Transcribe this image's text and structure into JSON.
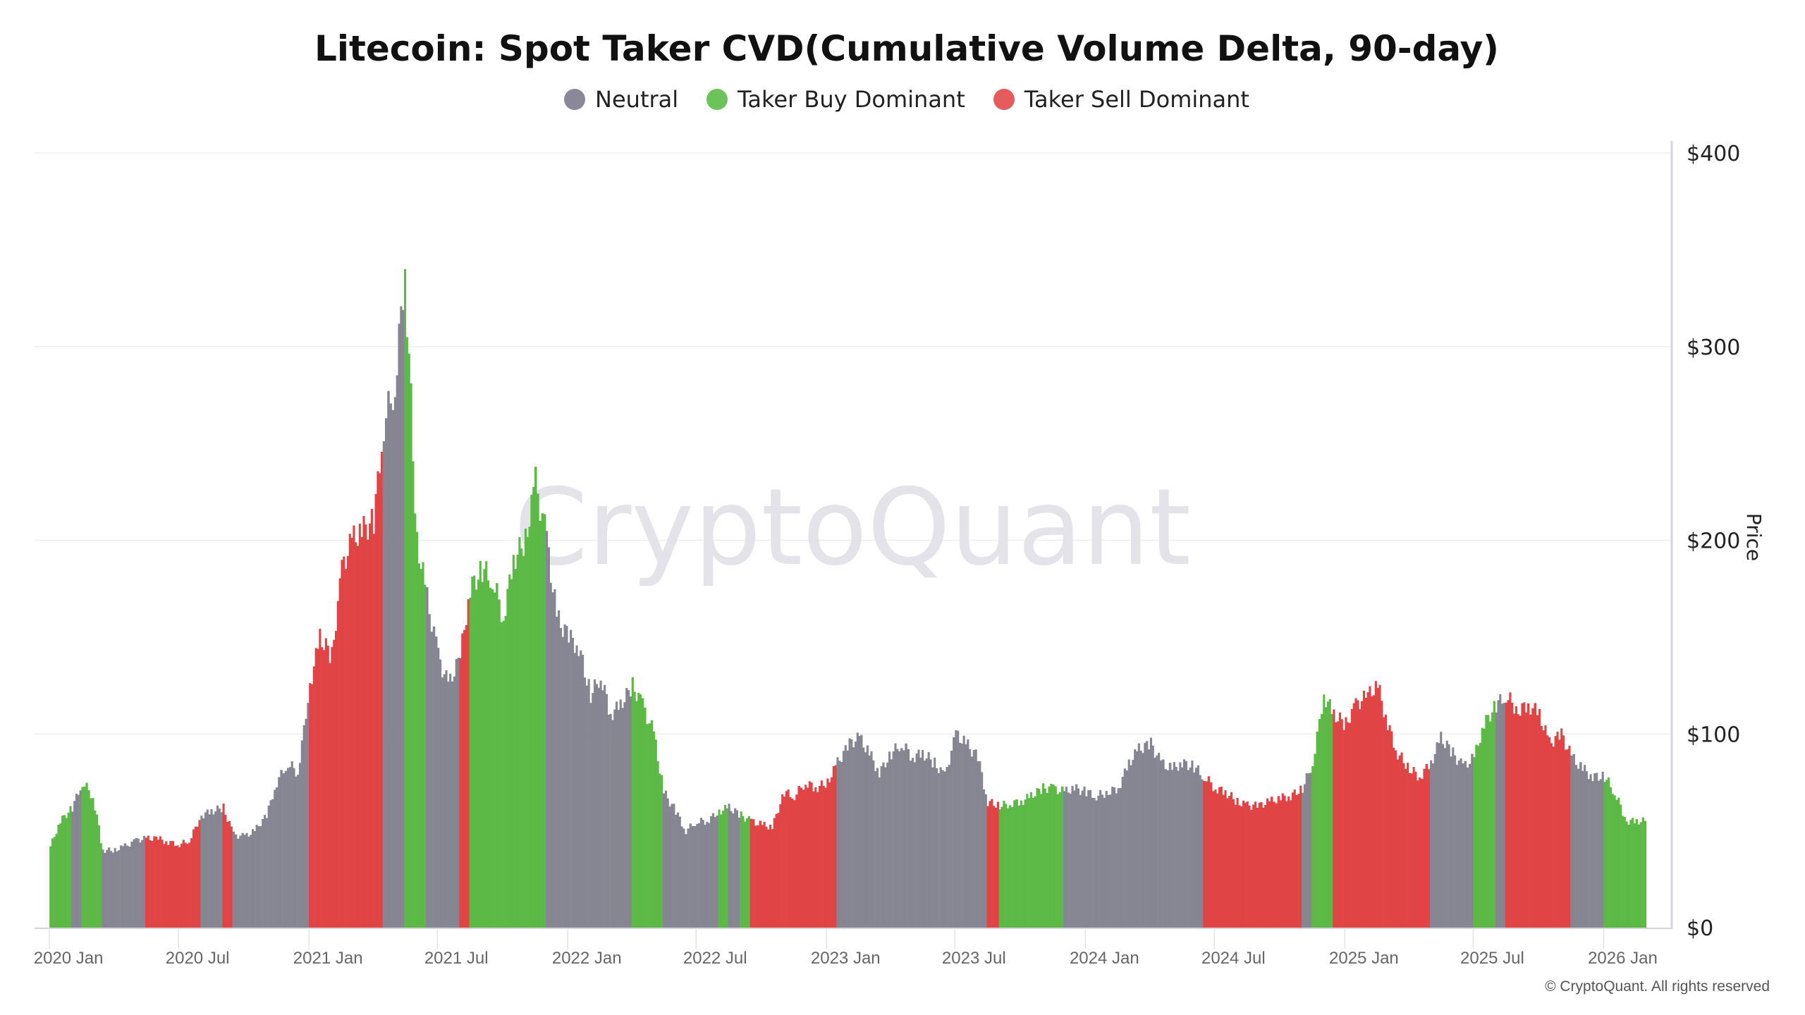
{
  "chart_data": {
    "type": "bar",
    "title": "Litecoin: Spot Taker CVD(Cumulative Volume Delta, 90-day)",
    "ylabel": "Price",
    "xlabel": "",
    "ylim": [
      0,
      400
    ],
    "xlim": [
      "2019-12-11",
      "2026-04-07"
    ],
    "y_ticks": [
      "$0",
      "$100",
      "$200",
      "$300",
      "$400"
    ],
    "y_tick_values": [
      0,
      100,
      200,
      300,
      400
    ],
    "y_axis_position": "right",
    "x_ticks": [
      {
        "date": "2020-01-01",
        "label": "2020 Jan"
      },
      {
        "date": "2020-07-01",
        "label": "2020 Jul"
      },
      {
        "date": "2021-01-01",
        "label": "2021 Jan"
      },
      {
        "date": "2021-07-01",
        "label": "2021 Jul"
      },
      {
        "date": "2022-01-01",
        "label": "2022 Jan"
      },
      {
        "date": "2022-07-01",
        "label": "2022 Jul"
      },
      {
        "date": "2023-01-01",
        "label": "2023 Jan"
      },
      {
        "date": "2023-07-01",
        "label": "2023 Jul"
      },
      {
        "date": "2024-01-01",
        "label": "2024 Jan"
      },
      {
        "date": "2024-07-01",
        "label": "2024 Jul"
      },
      {
        "date": "2025-01-01",
        "label": "2025 Jan"
      },
      {
        "date": "2025-07-01",
        "label": "2025 Jul"
      },
      {
        "date": "2026-01-01",
        "label": "2026 Jan"
      }
    ],
    "grid": true,
    "legend_position": "top-center",
    "legend": [
      {
        "key": "N",
        "name": "Neutral",
        "color": "#8a8898"
      },
      {
        "key": "B",
        "name": "Taker Buy Dominant",
        "color": "#6cc35a"
      },
      {
        "key": "S",
        "name": "Taker Sell Dominant",
        "color": "#e65c5c"
      }
    ],
    "bar_colors": {
      "N": "#868592",
      "B": "#5cb946",
      "S": "#e04444"
    },
    "points": [
      [
        "2020-01-01",
        42,
        "B"
      ],
      [
        "2020-01-15",
        55,
        "B"
      ],
      [
        "2020-02-01",
        62,
        "N"
      ],
      [
        "2020-02-15",
        75,
        "B"
      ],
      [
        "2020-03-01",
        68,
        "B"
      ],
      [
        "2020-03-15",
        40,
        "N"
      ],
      [
        "2020-04-01",
        40,
        "N"
      ],
      [
        "2020-04-15",
        42,
        "N"
      ],
      [
        "2020-05-01",
        45,
        "N"
      ],
      [
        "2020-05-15",
        46,
        "S"
      ],
      [
        "2020-06-01",
        46,
        "S"
      ],
      [
        "2020-06-15",
        44,
        "S"
      ],
      [
        "2020-07-01",
        43,
        "S"
      ],
      [
        "2020-07-15",
        45,
        "S"
      ],
      [
        "2020-08-01",
        58,
        "N"
      ],
      [
        "2020-08-15",
        60,
        "N"
      ],
      [
        "2020-09-01",
        62,
        "S"
      ],
      [
        "2020-09-15",
        48,
        "N"
      ],
      [
        "2020-10-01",
        47,
        "N"
      ],
      [
        "2020-10-15",
        50,
        "N"
      ],
      [
        "2020-11-01",
        58,
        "N"
      ],
      [
        "2020-11-15",
        75,
        "N"
      ],
      [
        "2020-12-01",
        85,
        "N"
      ],
      [
        "2020-12-15",
        80,
        "N"
      ],
      [
        "2021-01-01",
        125,
        "S"
      ],
      [
        "2021-01-15",
        150,
        "S"
      ],
      [
        "2021-02-01",
        140,
        "S"
      ],
      [
        "2021-02-15",
        185,
        "S"
      ],
      [
        "2021-03-01",
        200,
        "S"
      ],
      [
        "2021-03-15",
        205,
        "S"
      ],
      [
        "2021-04-01",
        210,
        "S"
      ],
      [
        "2021-04-15",
        260,
        "N"
      ],
      [
        "2021-05-01",
        280,
        "N"
      ],
      [
        "2021-05-15",
        340,
        "B"
      ],
      [
        "2021-06-01",
        200,
        "B"
      ],
      [
        "2021-06-15",
        170,
        "N"
      ],
      [
        "2021-07-01",
        140,
        "N"
      ],
      [
        "2021-07-15",
        125,
        "N"
      ],
      [
        "2021-08-01",
        140,
        "S"
      ],
      [
        "2021-08-15",
        175,
        "B"
      ],
      [
        "2021-09-01",
        185,
        "B"
      ],
      [
        "2021-09-15",
        180,
        "B"
      ],
      [
        "2021-10-01",
        160,
        "B"
      ],
      [
        "2021-10-15",
        190,
        "B"
      ],
      [
        "2021-11-01",
        200,
        "B"
      ],
      [
        "2021-11-15",
        230,
        "B"
      ],
      [
        "2021-12-01",
        200,
        "N"
      ],
      [
        "2021-12-15",
        160,
        "N"
      ],
      [
        "2022-01-01",
        150,
        "N"
      ],
      [
        "2022-01-15",
        145,
        "N"
      ],
      [
        "2022-02-01",
        120,
        "N"
      ],
      [
        "2022-02-15",
        130,
        "N"
      ],
      [
        "2022-03-01",
        110,
        "N"
      ],
      [
        "2022-03-15",
        115,
        "N"
      ],
      [
        "2022-04-01",
        125,
        "B"
      ],
      [
        "2022-04-15",
        115,
        "B"
      ],
      [
        "2022-05-01",
        100,
        "B"
      ],
      [
        "2022-05-15",
        70,
        "N"
      ],
      [
        "2022-06-01",
        60,
        "N"
      ],
      [
        "2022-06-15",
        50,
        "N"
      ],
      [
        "2022-07-01",
        55,
        "N"
      ],
      [
        "2022-07-15",
        55,
        "N"
      ],
      [
        "2022-08-01",
        60,
        "B"
      ],
      [
        "2022-08-15",
        62,
        "N"
      ],
      [
        "2022-09-01",
        58,
        "B"
      ],
      [
        "2022-09-15",
        55,
        "S"
      ],
      [
        "2022-10-01",
        53,
        "S"
      ],
      [
        "2022-10-15",
        52,
        "S"
      ],
      [
        "2022-11-01",
        70,
        "S"
      ],
      [
        "2022-11-15",
        68,
        "S"
      ],
      [
        "2022-12-01",
        75,
        "S"
      ],
      [
        "2022-12-15",
        72,
        "S"
      ],
      [
        "2023-01-01",
        75,
        "S"
      ],
      [
        "2023-01-15",
        85,
        "N"
      ],
      [
        "2023-02-01",
        95,
        "N"
      ],
      [
        "2023-02-15",
        98,
        "N"
      ],
      [
        "2023-03-01",
        90,
        "N"
      ],
      [
        "2023-03-15",
        80,
        "N"
      ],
      [
        "2023-04-01",
        90,
        "N"
      ],
      [
        "2023-04-15",
        95,
        "N"
      ],
      [
        "2023-05-01",
        88,
        "N"
      ],
      [
        "2023-05-15",
        90,
        "N"
      ],
      [
        "2023-06-01",
        85,
        "N"
      ],
      [
        "2023-06-15",
        78,
        "N"
      ],
      [
        "2023-07-01",
        100,
        "N"
      ],
      [
        "2023-07-15",
        95,
        "N"
      ],
      [
        "2023-08-01",
        88,
        "N"
      ],
      [
        "2023-08-15",
        65,
        "S"
      ],
      [
        "2023-09-01",
        63,
        "B"
      ],
      [
        "2023-09-15",
        64,
        "B"
      ],
      [
        "2023-10-01",
        65,
        "B"
      ],
      [
        "2023-10-15",
        68,
        "B"
      ],
      [
        "2023-11-01",
        72,
        "B"
      ],
      [
        "2023-11-15",
        72,
        "B"
      ],
      [
        "2023-12-01",
        70,
        "N"
      ],
      [
        "2023-12-15",
        72,
        "N"
      ],
      [
        "2024-01-01",
        70,
        "N"
      ],
      [
        "2024-01-15",
        68,
        "N"
      ],
      [
        "2024-02-01",
        70,
        "N"
      ],
      [
        "2024-02-15",
        72,
        "N"
      ],
      [
        "2024-03-01",
        85,
        "N"
      ],
      [
        "2024-03-15",
        92,
        "N"
      ],
      [
        "2024-04-01",
        95,
        "N"
      ],
      [
        "2024-04-15",
        85,
        "N"
      ],
      [
        "2024-05-01",
        82,
        "N"
      ],
      [
        "2024-05-15",
        85,
        "N"
      ],
      [
        "2024-06-01",
        83,
        "N"
      ],
      [
        "2024-06-15",
        78,
        "S"
      ],
      [
        "2024-07-01",
        72,
        "S"
      ],
      [
        "2024-07-15",
        70,
        "S"
      ],
      [
        "2024-08-01",
        65,
        "S"
      ],
      [
        "2024-08-15",
        63,
        "S"
      ],
      [
        "2024-09-01",
        63,
        "S"
      ],
      [
        "2024-09-15",
        65,
        "S"
      ],
      [
        "2024-10-01",
        67,
        "S"
      ],
      [
        "2024-10-15",
        68,
        "S"
      ],
      [
        "2024-11-01",
        72,
        "N"
      ],
      [
        "2024-11-15",
        85,
        "B"
      ],
      [
        "2024-12-01",
        120,
        "B"
      ],
      [
        "2024-12-15",
        110,
        "S"
      ],
      [
        "2025-01-01",
        105,
        "S"
      ],
      [
        "2025-01-15",
        115,
        "S"
      ],
      [
        "2025-02-01",
        120,
        "S"
      ],
      [
        "2025-02-15",
        125,
        "S"
      ],
      [
        "2025-03-01",
        105,
        "S"
      ],
      [
        "2025-03-15",
        90,
        "S"
      ],
      [
        "2025-04-01",
        82,
        "S"
      ],
      [
        "2025-04-15",
        78,
        "S"
      ],
      [
        "2025-05-01",
        85,
        "N"
      ],
      [
        "2025-05-15",
        98,
        "N"
      ],
      [
        "2025-06-01",
        90,
        "N"
      ],
      [
        "2025-06-15",
        83,
        "N"
      ],
      [
        "2025-07-01",
        88,
        "B"
      ],
      [
        "2025-07-15",
        105,
        "B"
      ],
      [
        "2025-08-01",
        115,
        "N"
      ],
      [
        "2025-08-15",
        120,
        "S"
      ],
      [
        "2025-09-01",
        112,
        "S"
      ],
      [
        "2025-09-15",
        115,
        "S"
      ],
      [
        "2025-10-01",
        110,
        "S"
      ],
      [
        "2025-10-15",
        95,
        "S"
      ],
      [
        "2025-11-01",
        100,
        "S"
      ],
      [
        "2025-11-15",
        88,
        "N"
      ],
      [
        "2025-12-01",
        82,
        "N"
      ],
      [
        "2025-12-15",
        78,
        "N"
      ],
      [
        "2026-01-01",
        78,
        "B"
      ],
      [
        "2026-01-15",
        70,
        "B"
      ],
      [
        "2026-02-01",
        55,
        "B"
      ],
      [
        "2026-02-15",
        55,
        "B"
      ]
    ]
  },
  "watermark": "CryptoQuant",
  "copyright": "© CryptoQuant. All rights reserved"
}
